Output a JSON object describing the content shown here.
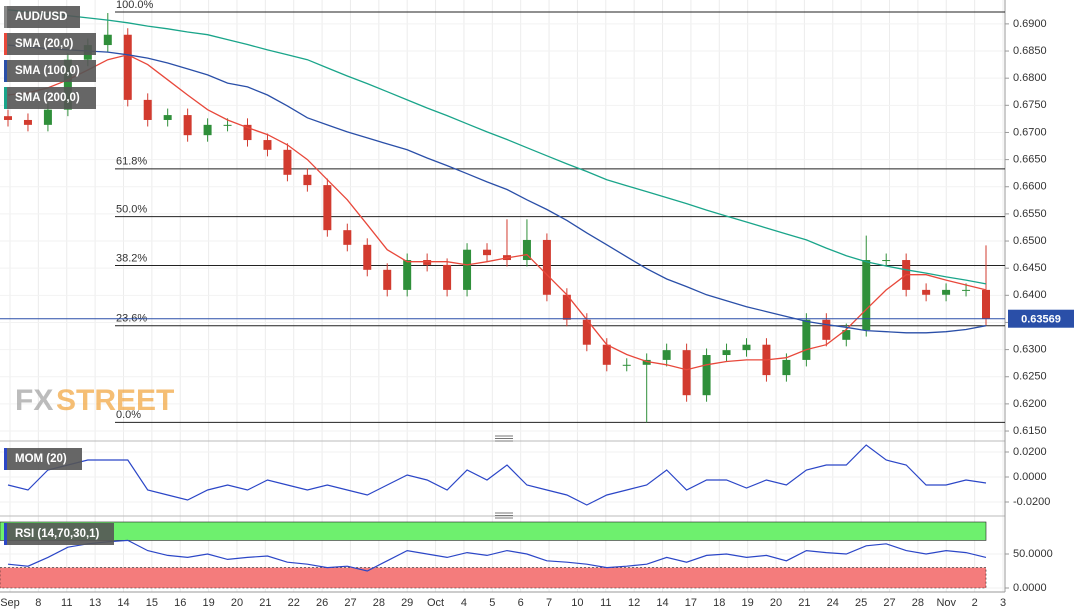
{
  "chart_data": [
    {
      "type": "candlestick",
      "title": "AUD/USD",
      "ylim": [
        0.6139,
        0.6944
      ],
      "yticks": [
        {
          "value": 0.69,
          "label": "0.6900"
        },
        {
          "value": 0.685,
          "label": "0.6850"
        },
        {
          "value": 0.68,
          "label": "0.6800"
        },
        {
          "value": 0.675,
          "label": "0.6750"
        },
        {
          "value": 0.67,
          "label": "0.6700"
        },
        {
          "value": 0.665,
          "label": "0.6650"
        },
        {
          "value": 0.66,
          "label": "0.6600"
        },
        {
          "value": 0.655,
          "label": "0.6550"
        },
        {
          "value": 0.65,
          "label": "0.6500"
        },
        {
          "value": 0.645,
          "label": "0.6450"
        },
        {
          "value": 0.64,
          "label": "0.6400"
        },
        {
          "value": 0.635,
          "label": "0.6350"
        },
        {
          "value": 0.63,
          "label": "0.6300"
        },
        {
          "value": 0.625,
          "label": "0.6250"
        },
        {
          "value": 0.62,
          "label": "0.6200"
        },
        {
          "value": 0.615,
          "label": "0.6150"
        }
      ],
      "x_labels": [
        "Sep",
        "8",
        "11",
        "13",
        "14",
        "15",
        "16",
        "19",
        "20",
        "21",
        "22",
        "26",
        "27",
        "28",
        "29",
        "Oct",
        "4",
        "5",
        "6",
        "7",
        "10",
        "11",
        "12",
        "14",
        "17",
        "18",
        "19",
        "20",
        "21",
        "24",
        "25",
        "27",
        "28",
        "Nov",
        "2",
        "3"
      ],
      "open": [
        0.673,
        0.6723,
        0.6714,
        0.6742,
        0.6834,
        0.6861,
        0.688,
        0.676,
        0.6723,
        0.6732,
        0.6695,
        0.6714,
        0.6714,
        0.6686,
        0.6668,
        0.6622,
        0.6603,
        0.652,
        0.6493,
        0.6447,
        0.641,
        0.6465,
        0.6456,
        0.641,
        0.6484,
        0.6474,
        0.6465,
        0.6502,
        0.6401,
        0.6355,
        0.6309,
        0.6272,
        0.6272,
        0.6281,
        0.6299,
        0.6216,
        0.629,
        0.6299,
        0.6309,
        0.6253,
        0.6281,
        0.6355,
        0.6318,
        0.6336,
        0.6465,
        0.6465,
        0.641,
        0.6401,
        0.641,
        0.641
      ],
      "high": [
        0.6742,
        0.6735,
        0.6754,
        0.6846,
        0.6873,
        0.692,
        0.6892,
        0.6772,
        0.6744,
        0.6744,
        0.6726,
        0.6726,
        0.6726,
        0.6698,
        0.668,
        0.6634,
        0.6615,
        0.6532,
        0.6505,
        0.6459,
        0.6477,
        0.6477,
        0.6468,
        0.6496,
        0.6496,
        0.654,
        0.654,
        0.6514,
        0.6413,
        0.6367,
        0.6321,
        0.6284,
        0.6293,
        0.6311,
        0.6311,
        0.6302,
        0.6311,
        0.6321,
        0.6321,
        0.6293,
        0.6367,
        0.6367,
        0.6348,
        0.651,
        0.6477,
        0.6477,
        0.6422,
        0.6422,
        0.6422,
        0.6492
      ],
      "low": [
        0.6711,
        0.6702,
        0.6702,
        0.673,
        0.6822,
        0.6849,
        0.6748,
        0.6711,
        0.6711,
        0.6683,
        0.6683,
        0.6702,
        0.6674,
        0.6656,
        0.661,
        0.6591,
        0.6508,
        0.6481,
        0.6435,
        0.6398,
        0.6398,
        0.6444,
        0.6398,
        0.6398,
        0.6462,
        0.6453,
        0.6453,
        0.6389,
        0.6343,
        0.6297,
        0.626,
        0.626,
        0.6166,
        0.6269,
        0.6204,
        0.6204,
        0.6278,
        0.6287,
        0.6241,
        0.6241,
        0.6269,
        0.6306,
        0.6306,
        0.6324,
        0.6453,
        0.6398,
        0.6389,
        0.6389,
        0.6398,
        0.6345
      ],
      "close": [
        0.6723,
        0.6714,
        0.6742,
        0.6834,
        0.6861,
        0.688,
        0.676,
        0.6723,
        0.6732,
        0.6695,
        0.6714,
        0.6714,
        0.6686,
        0.6668,
        0.6622,
        0.6603,
        0.652,
        0.6493,
        0.6447,
        0.641,
        0.6465,
        0.6456,
        0.641,
        0.6484,
        0.6474,
        0.6465,
        0.6502,
        0.6401,
        0.6355,
        0.6309,
        0.6272,
        0.6272,
        0.6281,
        0.6299,
        0.6216,
        0.629,
        0.6299,
        0.6309,
        0.6253,
        0.6281,
        0.6355,
        0.6318,
        0.6336,
        0.6465,
        0.6465,
        0.641,
        0.6401,
        0.641,
        0.641,
        0.6357
      ],
      "up_color": "#2f8f3a",
      "down_color": "#d23b2f",
      "series": [
        {
          "name": "SMA (20,0)",
          "color": "#e8483b",
          "values": [
            0.6769,
            0.6773,
            0.6782,
            0.6797,
            0.6815,
            0.6834,
            0.6843,
            0.6825,
            0.6797,
            0.6769,
            0.6742,
            0.6723,
            0.6709,
            0.6696,
            0.6677,
            0.665,
            0.6613,
            0.6576,
            0.653,
            0.6484,
            0.6462,
            0.6462,
            0.6462,
            0.6456,
            0.6462,
            0.6469,
            0.6475,
            0.6438,
            0.6401,
            0.6355,
            0.6309,
            0.6291,
            0.6278,
            0.6272,
            0.6263,
            0.6272,
            0.6278,
            0.6281,
            0.6281,
            0.6285,
            0.63,
            0.6309,
            0.6337,
            0.6374,
            0.641,
            0.6438,
            0.6438,
            0.6428,
            0.6419,
            0.641
          ]
        },
        {
          "name": "SMA (100,0)",
          "color": "#2a4fa8",
          "values": [
            0.6861,
            0.6858,
            0.6854,
            0.6852,
            0.685,
            0.6848,
            0.6843,
            0.6837,
            0.6828,
            0.6817,
            0.6806,
            0.6791,
            0.6784,
            0.6769,
            0.6749,
            0.6727,
            0.6714,
            0.6701,
            0.669,
            0.6679,
            0.6668,
            0.6653,
            0.6639,
            0.6624,
            0.6609,
            0.6595,
            0.6576,
            0.6558,
            0.6538,
            0.6515,
            0.6493,
            0.6471,
            0.6449,
            0.643,
            0.6416,
            0.6401,
            0.639,
            0.6379,
            0.637,
            0.6361,
            0.6352,
            0.6346,
            0.6341,
            0.6335,
            0.6333,
            0.6331,
            0.6331,
            0.6333,
            0.6337,
            0.6344
          ]
        },
        {
          "name": "SMA (200,0)",
          "color": "#1aa58a",
          "values": [
            0.6926,
            0.6922,
            0.6918,
            0.6915,
            0.6911,
            0.6907,
            0.6902,
            0.6896,
            0.6891,
            0.6885,
            0.688,
            0.6871,
            0.6862,
            0.6852,
            0.6843,
            0.6834,
            0.6819,
            0.6804,
            0.679,
            0.6775,
            0.676,
            0.6745,
            0.6731,
            0.6716,
            0.6701,
            0.6687,
            0.6672,
            0.6657,
            0.6642,
            0.6628,
            0.6613,
            0.6602,
            0.6591,
            0.658,
            0.6569,
            0.6557,
            0.6546,
            0.6535,
            0.6524,
            0.6513,
            0.6502,
            0.6487,
            0.6473,
            0.6462,
            0.6454,
            0.6447,
            0.6441,
            0.6434,
            0.6428,
            0.6421
          ]
        }
      ],
      "fib_levels": [
        {
          "label": "100.0%",
          "price": 0.6922
        },
        {
          "label": "61.8%",
          "price": 0.6633
        },
        {
          "label": "50.0%",
          "price": 0.6545
        },
        {
          "label": "38.2%",
          "price": 0.6455
        },
        {
          "label": "23.6%",
          "price": 0.6344
        },
        {
          "label": "0.0%",
          "price": 0.6166
        }
      ],
      "last_price": 0.63569,
      "last_price_color": "#2a4fa8",
      "watermark": {
        "fx": "FX",
        "street": "STREET"
      }
    },
    {
      "type": "line",
      "name": "MOM (20)",
      "color": "#2b46c7",
      "ylim": [
        -0.028,
        0.0256
      ],
      "yticks": [
        {
          "value": 0.02,
          "label": "0.0200"
        },
        {
          "value": 0,
          "label": "0.0000"
        },
        {
          "value": -0.02,
          "label": "-0.0200"
        }
      ],
      "values": [
        -0.0064,
        -0.0104,
        0.0056,
        0.0096,
        0.0136,
        0.0136,
        0.0136,
        -0.0104,
        -0.0144,
        -0.0184,
        -0.0104,
        -0.0064,
        -0.0104,
        -0.0024,
        -0.0064,
        -0.0104,
        -0.0064,
        -0.0104,
        -0.0144,
        -0.0064,
        0.0016,
        -0.0024,
        -0.0104,
        0.0056,
        -0.0024,
        0.0096,
        -0.0064,
        -0.0104,
        -0.0144,
        -0.0224,
        -0.0144,
        -0.0104,
        -0.0064,
        0.0056,
        -0.0104,
        -0.0024,
        -0.0024,
        -0.0088,
        -0.0024,
        -0.0064,
        0.0056,
        0.0096,
        0.0096,
        0.0256,
        0.0136,
        0.0096,
        -0.0064,
        -0.0064,
        -0.0024,
        -0.0048
      ]
    },
    {
      "type": "line",
      "name": "RSI (14,70,30,1)",
      "color": "#2b46c7",
      "ylim": [
        0,
        100
      ],
      "yticks": [
        {
          "value": 50,
          "label": "50.0000"
        },
        {
          "value": 0,
          "label": "0.0000"
        }
      ],
      "overbought": 70,
      "oversold": 30,
      "overbought_color": "#6ef06e",
      "oversold_color": "#f47c7c",
      "values": [
        35,
        32,
        45,
        60,
        65,
        68,
        70,
        55,
        48,
        45,
        50,
        42,
        45,
        47,
        38,
        35,
        30,
        32,
        25,
        40,
        55,
        50,
        45,
        52,
        48,
        55,
        50,
        40,
        38,
        35,
        30,
        32,
        35,
        45,
        38,
        48,
        50,
        45,
        48,
        40,
        55,
        52,
        50,
        62,
        65,
        55,
        50,
        55,
        52,
        45
      ]
    }
  ]
}
